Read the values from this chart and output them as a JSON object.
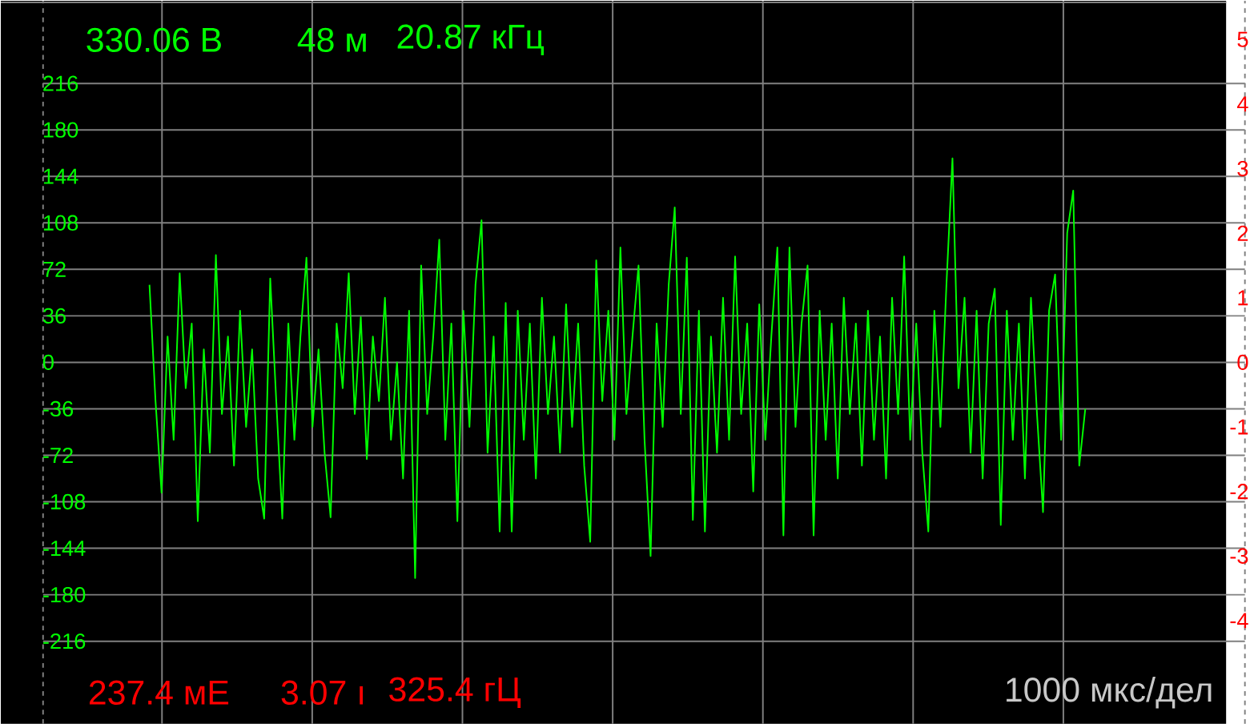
{
  "chart_data": {
    "type": "line",
    "annotations": [
      "330.06 В",
      "48 м",
      "20.87 кГц",
      "237.4 мЕ",
      "3.07 ı",
      "325.4 гЦ",
      "1000 мкс/дел"
    ],
    "series": [
      {
        "color": "#00ff00",
        "values": [
          60,
          -30,
          -101,
          20,
          -60,
          69,
          -20,
          30,
          -123,
          10,
          -70,
          83,
          -40,
          20,
          -80,
          40,
          -50,
          10,
          -90,
          -121,
          65,
          -30,
          -121,
          30,
          -60,
          20,
          81,
          -50,
          10,
          -70,
          -120,
          30,
          -20,
          69,
          -40,
          35,
          -75,
          20,
          -30,
          50,
          -60,
          0,
          -90,
          40,
          -167,
          75,
          -40,
          20,
          95,
          -60,
          30,
          -123,
          40,
          -50,
          60,
          110,
          -70,
          20,
          -131,
          46,
          -131,
          40,
          -60,
          30,
          -90,
          50,
          -40,
          20,
          -70,
          45,
          -50,
          30,
          -80,
          -139,
          79,
          -30,
          40,
          -60,
          89,
          -40,
          20,
          75,
          -60,
          -150,
          30,
          -50,
          60,
          120,
          -40,
          81,
          -122,
          40,
          -131,
          20,
          -70,
          50,
          -60,
          82,
          -40,
          30,
          -100,
          45,
          -60,
          20,
          89,
          -134,
          89,
          -50,
          30,
          75,
          -134,
          40,
          -60,
          30,
          -90,
          50,
          -40,
          30,
          -80,
          40,
          -60,
          20,
          -90,
          50,
          -40,
          82,
          -60,
          30,
          -70,
          -131,
          40,
          -50,
          60,
          158,
          -20,
          50,
          -70,
          40,
          -90,
          30,
          57,
          -126,
          40,
          -60,
          30,
          -90,
          50,
          -40,
          -116,
          40,
          68,
          -60,
          100,
          133,
          -80,
          -36
        ]
      }
    ],
    "categories": [
      null,
      null,
      null,
      null,
      null,
      null,
      null,
      null,
      null,
      null,
      null,
      null,
      null,
      null,
      null,
      null,
      null,
      null,
      null,
      null,
      null,
      null,
      null,
      null,
      null,
      null,
      null,
      null,
      null,
      null,
      null,
      null,
      null,
      null,
      null,
      null,
      null,
      null,
      null,
      null,
      null,
      null,
      null,
      null,
      null,
      null,
      null,
      null,
      null,
      null,
      null,
      null,
      null,
      null,
      null,
      null,
      null,
      null,
      null,
      null,
      null,
      null,
      null,
      null,
      null,
      null,
      null,
      null,
      null,
      null,
      null,
      null,
      null,
      null,
      null,
      null,
      null,
      null,
      null,
      null,
      null,
      null,
      null,
      null,
      null,
      null,
      null,
      null,
      null,
      null,
      null,
      null,
      null,
      null,
      null,
      null,
      null,
      null,
      null,
      null,
      null,
      null,
      null,
      null,
      null,
      null,
      null,
      null,
      null,
      null,
      null,
      null,
      null,
      null,
      null,
      null,
      null,
      null,
      null,
      null,
      null,
      null,
      null,
      null,
      null,
      null,
      null,
      null,
      null,
      null,
      null,
      null,
      null,
      null,
      null,
      null,
      null,
      null,
      null,
      null,
      null,
      null,
      null,
      null,
      null,
      null,
      null,
      null,
      null,
      null,
      null,
      null,
      null,
      null,
      null,
      null
    ],
    "ylim": [
      -280,
      280
    ],
    "yticks": [
      -216,
      -180,
      -144,
      -108,
      -72,
      -36,
      0,
      36,
      72,
      108,
      144,
      180,
      216
    ],
    "y2lim": [
      -5.6,
      5.6
    ],
    "y2ticks": [
      -4,
      -3,
      -2,
      -1,
      0,
      1,
      2,
      3,
      4,
      5
    ],
    "tick_labels": "y",
    "grid": true
  }
}
